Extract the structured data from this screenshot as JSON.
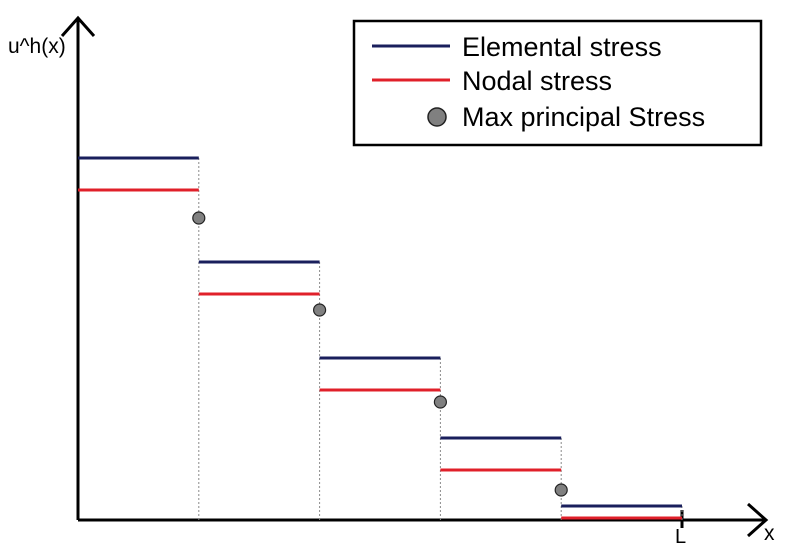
{
  "axes": {
    "y_label": "u^h(x)",
    "x_label": "x",
    "x_end_tick": "L"
  },
  "legend": {
    "items": [
      {
        "label": "Elemental stress",
        "kind": "line",
        "color": "#1a1f5c"
      },
      {
        "label": "Nodal stress",
        "kind": "line",
        "color": "#e0202a"
      },
      {
        "label": "Max principal Stress",
        "kind": "marker",
        "color": "#808080"
      }
    ]
  },
  "colors": {
    "elemental": "#1a1f5c",
    "nodal": "#e0202a",
    "marker_fill": "#808080",
    "connector": "#8a8a8a",
    "axis": "#000000"
  },
  "elements": [
    {
      "elemental": 0.9,
      "nodal": 0.82
    },
    {
      "elemental": 0.64,
      "nodal": 0.56
    },
    {
      "elemental": 0.4,
      "nodal": 0.32
    },
    {
      "elemental": 0.2,
      "nodal": 0.12
    },
    {
      "elemental": 0.03,
      "nodal": 0.0
    }
  ],
  "max_principal": [
    0.75,
    0.52,
    0.29,
    0.07
  ]
}
